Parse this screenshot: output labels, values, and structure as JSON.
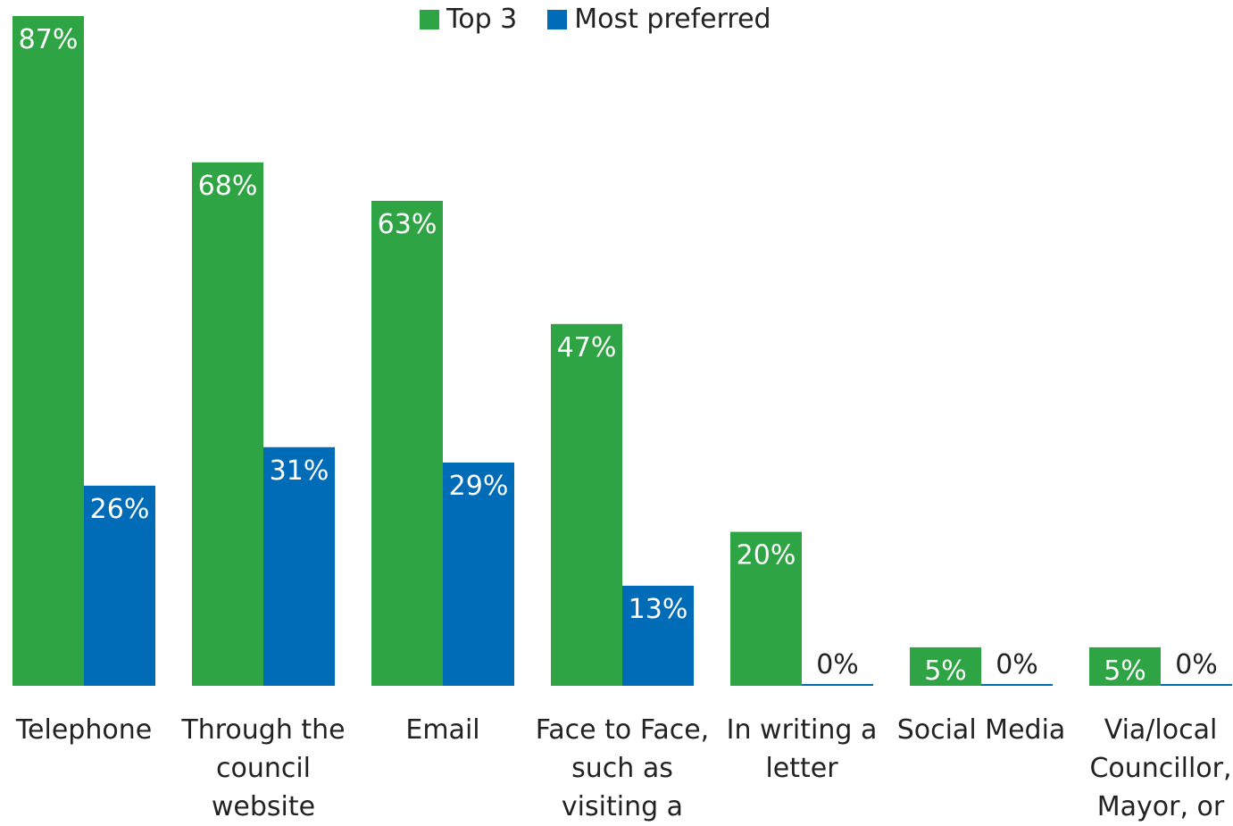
{
  "chart_data": {
    "type": "bar",
    "categories": [
      "Telephone",
      "Through the council website",
      "Email",
      "Face to Face, such as visiting a",
      "In writing a letter",
      "Social Media",
      "Via/local Councillor, Mayor, or"
    ],
    "category_lines": [
      [
        "Telephone"
      ],
      [
        "Through the",
        "council",
        "website"
      ],
      [
        "Email"
      ],
      [
        "Face to Face,",
        "such as",
        "visiting a"
      ],
      [
        "In writing a",
        "letter"
      ],
      [
        "Social Media"
      ],
      [
        "Via/local",
        "Councillor,",
        "Mayor, or"
      ]
    ],
    "series": [
      {
        "name": "Top 3",
        "color": "#2FA444",
        "values": [
          87,
          68,
          63,
          47,
          20,
          5,
          5
        ],
        "labels": [
          "87%",
          "68%",
          "63%",
          "47%",
          "20%",
          "5%",
          "5%"
        ]
      },
      {
        "name": "Most preferred",
        "color": "#006BB6",
        "values": [
          26,
          31,
          29,
          13,
          0,
          0,
          0
        ],
        "labels": [
          "26%",
          "31%",
          "29%",
          "13%",
          "0%",
          "0%",
          "0%"
        ]
      }
    ],
    "ylim": [
      0,
      87
    ],
    "grid": false,
    "legend_position": "top-center",
    "title": "",
    "xlabel": "",
    "ylabel": ""
  }
}
